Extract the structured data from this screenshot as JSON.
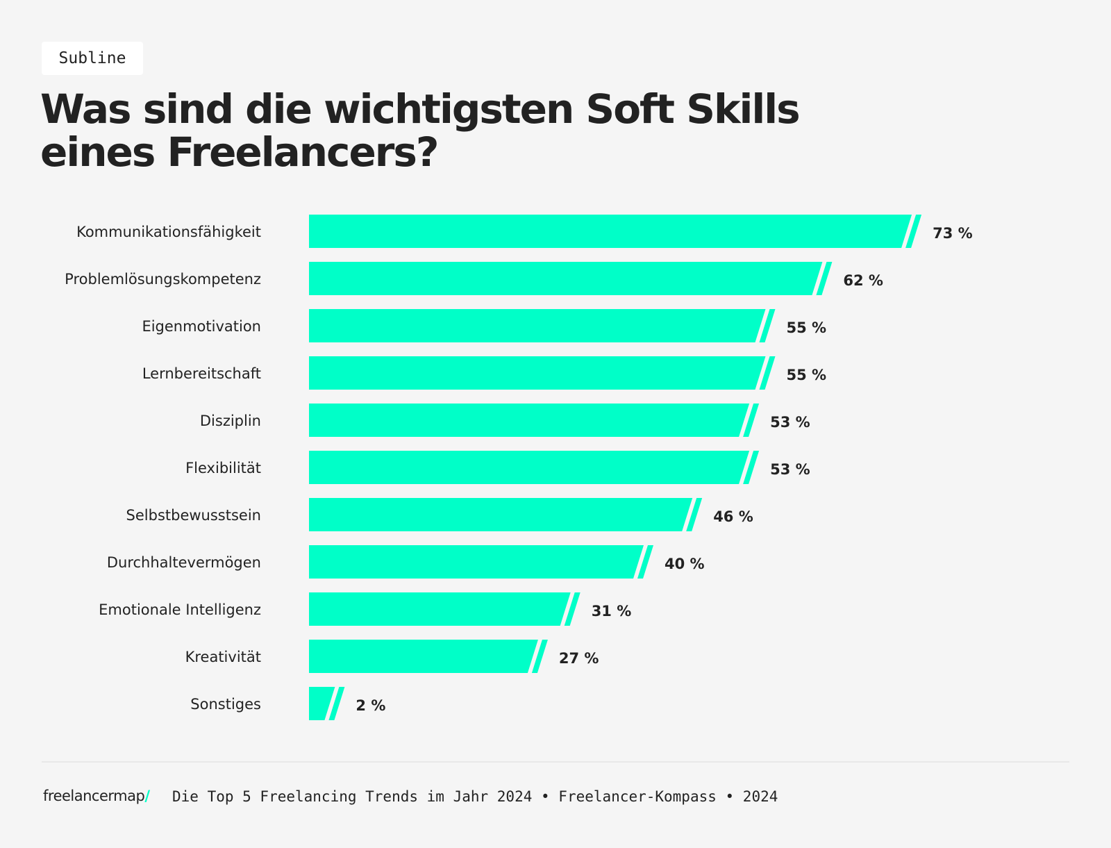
{
  "subline": "Subline",
  "title_line1": "Was sind die wichtigsten Soft Skills",
  "title_line2": "eines Freelancers?",
  "footer": {
    "logo": "freelancermap",
    "logo_slash": "/",
    "source": "Die Top 5 Freelancing Trends im Jahr 2024 • Freelancer-Kompass • 2024"
  },
  "chart_data": {
    "type": "bar",
    "orientation": "horizontal",
    "categories": [
      "Kommunikationsfähigkeit",
      "Problemlösungskompetenz",
      "Eigenmotivation",
      "Lernbereitschaft",
      "Disziplin",
      "Flexibilität",
      "Selbstbewusstsein",
      "Durchhaltevermögen",
      "Emotionale Intelligenz",
      "Kreativität",
      "Sonstiges"
    ],
    "values": [
      73,
      62,
      55,
      55,
      53,
      53,
      46,
      40,
      31,
      27,
      2
    ],
    "value_suffix": " %",
    "bar_color": "#00ffc8",
    "grid": false,
    "xlim": [
      0,
      100
    ]
  }
}
